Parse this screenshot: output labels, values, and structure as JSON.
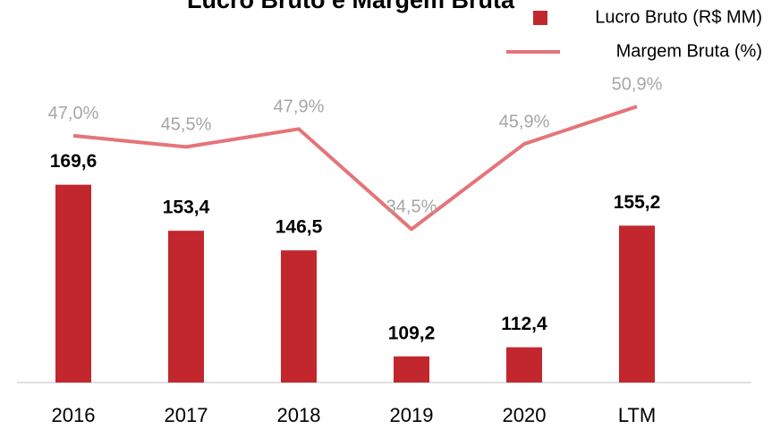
{
  "chart_data": {
    "type": "bar",
    "title": "Lucro Bruto e Margem Bruta",
    "categories": [
      "2016",
      "2017",
      "2018",
      "2019",
      "2020",
      "LTM"
    ],
    "ylim": [
      100,
      200
    ],
    "y2lim": [
      14,
      52
    ],
    "legend": "top-right",
    "series": [
      {
        "name": "Lucro Bruto (R$ MM)",
        "type": "bar",
        "color": "#c1272d",
        "values": [
          169.6,
          153.4,
          146.5,
          109.2,
          112.4,
          155.2
        ],
        "value_labels": [
          "169,6",
          "153,4",
          "146,5",
          "109,2",
          "112,4",
          "155,2"
        ]
      },
      {
        "name": "Margem Bruta (%)",
        "type": "line",
        "axis": "y2",
        "color": "#e57479",
        "values": [
          47.0,
          45.5,
          47.9,
          34.5,
          45.9,
          50.9
        ],
        "value_labels": [
          "47,0%",
          "45,5%",
          "47,9%",
          "34,5%",
          "45,9%",
          "50,9%"
        ]
      }
    ]
  }
}
